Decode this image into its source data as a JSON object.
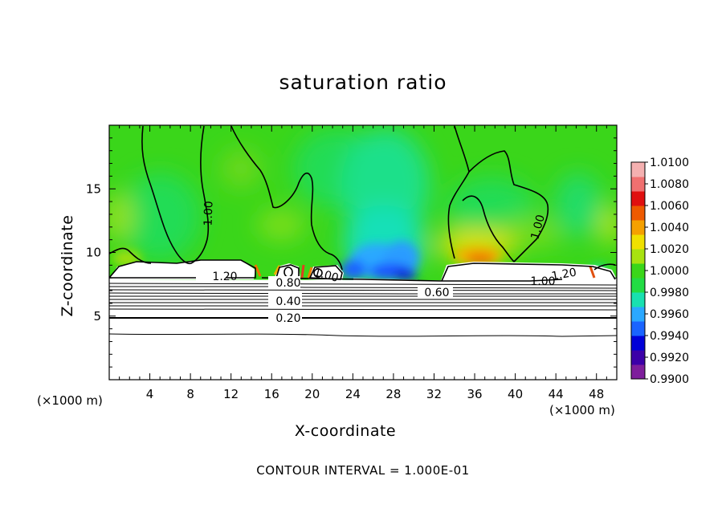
{
  "chart_data": {
    "type": "heatmap",
    "title": "saturation ratio",
    "xlabel": "X-coordinate",
    "ylabel": "Z-coordinate",
    "x_unit_label": "(×1000 m)",
    "xlim": [
      0,
      50
    ],
    "ylim": [
      0,
      20
    ],
    "x_ticks": [
      4,
      8,
      12,
      16,
      20,
      24,
      28,
      32,
      36,
      40,
      44,
      48
    ],
    "y_ticks": [
      5,
      10,
      15
    ],
    "colorbar": {
      "labels": [
        "1.0100",
        "1.0080",
        "1.0060",
        "1.0040",
        "1.0020",
        "1.0000",
        "0.9980",
        "0.9960",
        "0.9940",
        "0.9920",
        "0.9900"
      ],
      "range": [
        0.99,
        1.01
      ],
      "colors": [
        "#7e1e9c",
        "#3c00a8",
        "#0000d8",
        "#1a64ff",
        "#2aa8ff",
        "#19e0b0",
        "#22dc44",
        "#3ad61a",
        "#a8e210",
        "#f0e000",
        "#f5a000",
        "#ee5a00",
        "#e01010",
        "#f07070",
        "#f4b0b0"
      ]
    },
    "contour_labels": [
      "1.00",
      "1.00",
      "1.20",
      "1.20",
      "1.00",
      "1.00",
      "0.80",
      "0.60",
      "0.40",
      "0.20"
    ],
    "note": "CONTOUR INTERVAL = 1.000E-01"
  }
}
